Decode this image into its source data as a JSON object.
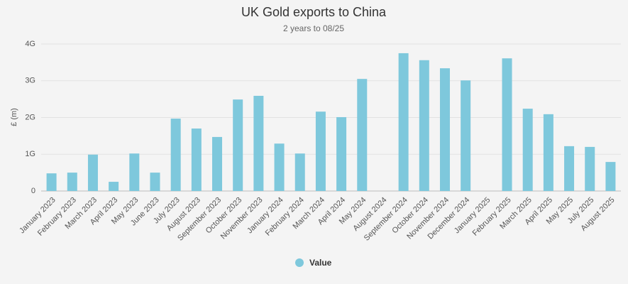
{
  "chart_data": {
    "type": "bar",
    "title": "UK Gold exports to China",
    "subtitle": "2 years to 08/25",
    "y_label": "£ (m)",
    "categories": [
      "January 2023",
      "February 2023",
      "March 2023",
      "April 2023",
      "May 2023",
      "June 2023",
      "July 2023",
      "August 2023",
      "September 2023",
      "October 2023",
      "November 2023",
      "January 2024",
      "February 2024",
      "March 2024",
      "April 2024",
      "May 2024",
      "August 2024",
      "September 2024",
      "October 2024",
      "November 2024",
      "December 2024",
      "January 2025",
      "February 2025",
      "March 2025",
      "April 2025",
      "May 2025",
      "July 2025",
      "August 2025"
    ],
    "series": [
      {
        "name": "Value",
        "color": "#7ec8dc",
        "values": [
          480000000,
          500000000,
          990000000,
          250000000,
          1020000000,
          500000000,
          1970000000,
          1700000000,
          1470000000,
          2490000000,
          2590000000,
          1290000000,
          1020000000,
          2160000000,
          2010000000,
          3050000000,
          null,
          3750000000,
          3560000000,
          3340000000,
          3010000000,
          null,
          3610000000,
          2240000000,
          2090000000,
          1220000000,
          1200000000,
          790000000
        ]
      }
    ],
    "ylim": [
      0,
      4000000000
    ],
    "yticks": [
      0,
      {
        "value": 1000000000,
        "label": "1G"
      },
      {
        "value": 2000000000,
        "label": "2G"
      },
      {
        "value": 3000000000,
        "label": "3G"
      },
      {
        "value": 4000000000,
        "label": "4G"
      }
    ],
    "grid": true
  }
}
